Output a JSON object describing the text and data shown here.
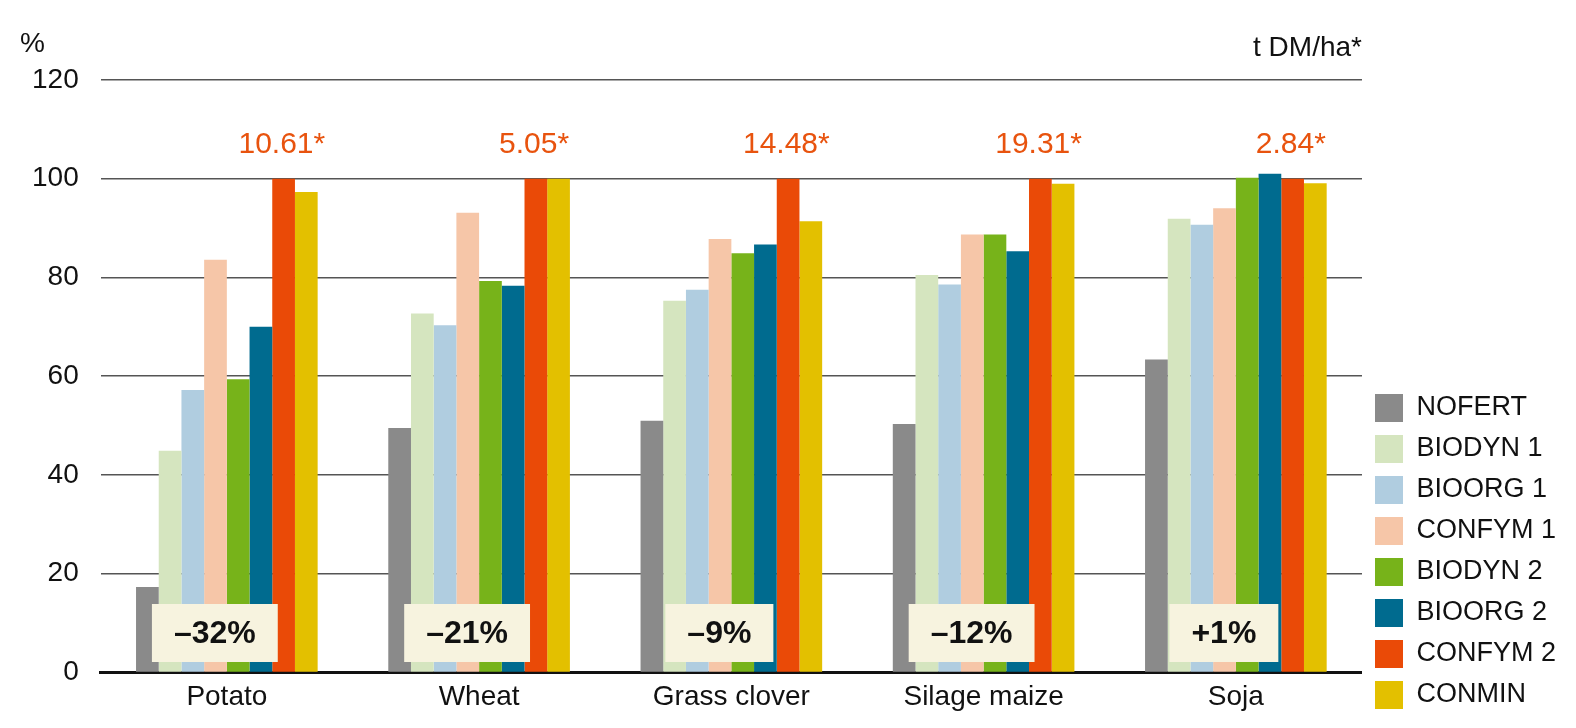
{
  "chart_data": {
    "type": "bar",
    "ylabel": "%",
    "categories": [
      "Potato",
      "Wheat",
      "Grass clover",
      "Silage maize",
      "Soja"
    ],
    "series": [
      {
        "name": "NOFERT",
        "color": "#8a8a8a",
        "values": [
          17.3,
          49.5,
          51.0,
          50.3,
          63.4
        ]
      },
      {
        "name": "BIODYN 1",
        "color": "#d5e5bf",
        "values": [
          44.9,
          72.7,
          75.3,
          80.5,
          91.9
        ]
      },
      {
        "name": "BIOORG 1",
        "color": "#b0cde0",
        "values": [
          57.2,
          70.3,
          77.5,
          78.6,
          90.7
        ]
      },
      {
        "name": "CONFYM 1",
        "color": "#f6c6a8",
        "values": [
          83.6,
          93.1,
          87.8,
          88.7,
          94.0
        ]
      },
      {
        "name": "BIODYN 2",
        "color": "#77b31a",
        "values": [
          59.4,
          79.3,
          84.9,
          88.7,
          100.2
        ]
      },
      {
        "name": "BIOORG 2",
        "color": "#006b8f",
        "values": [
          70.0,
          78.3,
          86.7,
          85.3,
          101.0
        ]
      },
      {
        "name": "CONFYM 2",
        "color": "#ea4a07",
        "values": [
          100,
          100,
          100,
          100,
          100
        ]
      },
      {
        "name": "CONMIN",
        "color": "#e3c000",
        "values": [
          97.3,
          100,
          91.4,
          99.0,
          99.1
        ]
      }
    ],
    "ylim": [
      0,
      120
    ],
    "yticks": [
      0,
      20,
      40,
      60,
      80,
      100,
      120
    ],
    "grid": "y",
    "legend": "right",
    "annotations": [
      "t DM/ha*",
      "10.61*",
      "5.05*",
      "14.48*",
      "19.31*",
      "2.84*",
      {
        "text": "–32%",
        "x": "Potato",
        "y": 8
      },
      {
        "text": "–21%",
        "x": "Wheat",
        "y": 8
      },
      {
        "text": "–9%",
        "x": "Grass clover",
        "y": 8
      },
      {
        "text": "–12%",
        "x": "Silage maize",
        "y": 8
      },
      {
        "text": "+1%",
        "x": "Soja",
        "y": 8
      }
    ]
  }
}
